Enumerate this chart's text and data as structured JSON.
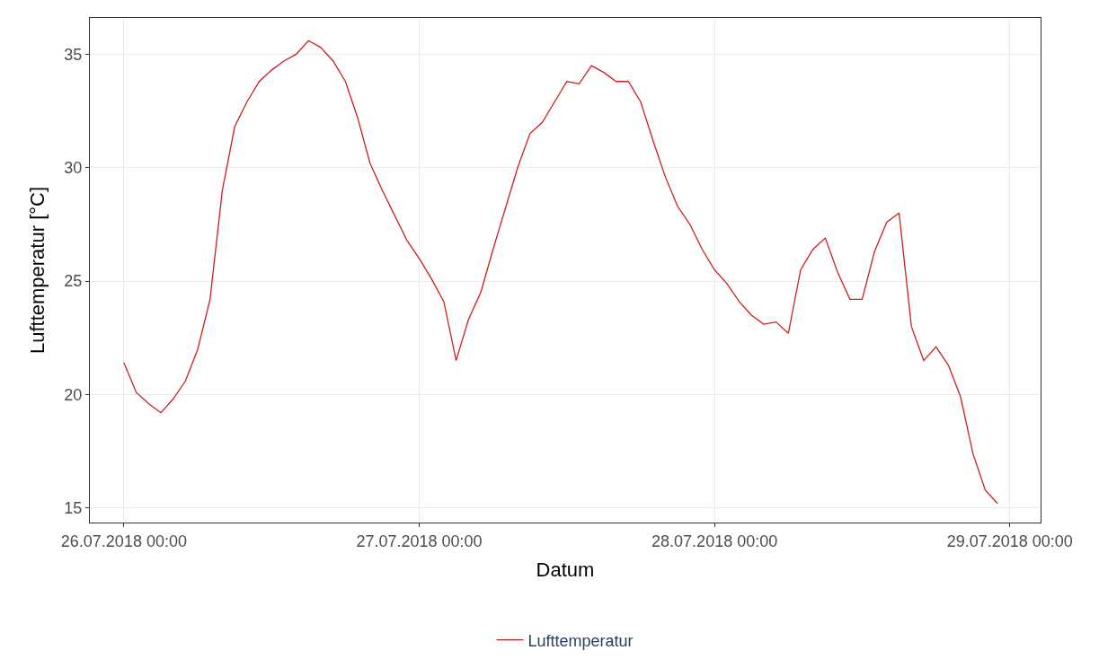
{
  "chart_data": {
    "type": "line",
    "xlabel": "Datum",
    "ylabel": "Lufttemperatur [°C]",
    "x": [
      "2018-07-26T00:00",
      "2018-07-26T01:00",
      "2018-07-26T02:00",
      "2018-07-26T03:00",
      "2018-07-26T04:00",
      "2018-07-26T05:00",
      "2018-07-26T06:00",
      "2018-07-26T07:00",
      "2018-07-26T08:00",
      "2018-07-26T09:00",
      "2018-07-26T10:00",
      "2018-07-26T11:00",
      "2018-07-26T12:00",
      "2018-07-26T13:00",
      "2018-07-26T14:00",
      "2018-07-26T15:00",
      "2018-07-26T16:00",
      "2018-07-26T17:00",
      "2018-07-26T18:00",
      "2018-07-26T19:00",
      "2018-07-26T20:00",
      "2018-07-26T21:00",
      "2018-07-26T22:00",
      "2018-07-26T23:00",
      "2018-07-27T00:00",
      "2018-07-27T01:00",
      "2018-07-27T02:00",
      "2018-07-27T03:00",
      "2018-07-27T04:00",
      "2018-07-27T05:00",
      "2018-07-27T06:00",
      "2018-07-27T07:00",
      "2018-07-27T08:00",
      "2018-07-27T09:00",
      "2018-07-27T10:00",
      "2018-07-27T11:00",
      "2018-07-27T12:00",
      "2018-07-27T13:00",
      "2018-07-27T14:00",
      "2018-07-27T15:00",
      "2018-07-27T16:00",
      "2018-07-27T17:00",
      "2018-07-27T18:00",
      "2018-07-27T19:00",
      "2018-07-27T20:00",
      "2018-07-27T21:00",
      "2018-07-27T22:00",
      "2018-07-27T23:00",
      "2018-07-28T00:00",
      "2018-07-28T01:00",
      "2018-07-28T02:00",
      "2018-07-28T03:00",
      "2018-07-28T04:00",
      "2018-07-28T05:00",
      "2018-07-28T06:00",
      "2018-07-28T07:00",
      "2018-07-28T08:00",
      "2018-07-28T09:00",
      "2018-07-28T10:00",
      "2018-07-28T11:00",
      "2018-07-28T12:00",
      "2018-07-28T13:00",
      "2018-07-28T14:00",
      "2018-07-28T15:00",
      "2018-07-28T16:00",
      "2018-07-28T17:00",
      "2018-07-28T18:00",
      "2018-07-28T19:00",
      "2018-07-28T20:00",
      "2018-07-28T21:00",
      "2018-07-28T22:00",
      "2018-07-28T23:00"
    ],
    "series": [
      {
        "name": "Lufttemperatur",
        "color": "#cc1f1f",
        "values": [
          21.4,
          20.1,
          19.6,
          19.2,
          19.8,
          20.6,
          22.0,
          24.2,
          29.0,
          31.8,
          32.9,
          33.8,
          34.3,
          34.7,
          35.0,
          35.6,
          35.3,
          34.7,
          33.8,
          32.2,
          30.2,
          29.0,
          27.9,
          26.8,
          26.0,
          25.1,
          24.1,
          21.5,
          23.3,
          24.5,
          26.4,
          28.2,
          30.0,
          31.5,
          32.0,
          32.9,
          33.8,
          33.7,
          34.5,
          34.2,
          33.8,
          33.8,
          32.9,
          31.2,
          29.6,
          28.3,
          27.5,
          26.4,
          25.5,
          24.9,
          24.1,
          23.5,
          23.1,
          23.2,
          22.7,
          25.5,
          26.4,
          26.9,
          25.4,
          24.2,
          24.2,
          26.3,
          27.6,
          28.0,
          23.0,
          21.5,
          22.1,
          21.3,
          19.9,
          17.4,
          15.8,
          15.2
        ]
      }
    ],
    "xlim": [
      "2018-07-25T21:14",
      "2018-07-29T02:30"
    ],
    "xticks": [
      {
        "value": "2018-07-26T00:00",
        "label": "26.07.2018 00:00"
      },
      {
        "value": "2018-07-27T00:00",
        "label": "27.07.2018 00:00"
      },
      {
        "value": "2018-07-28T00:00",
        "label": "28.07.2018 00:00"
      },
      {
        "value": "2018-07-29T00:00",
        "label": "29.07.2018 00:00"
      }
    ],
    "ylim": [
      14.36,
      36.6
    ],
    "yticks": [
      15,
      20,
      25,
      30,
      35
    ],
    "grid": true,
    "legend": "bottom",
    "line_style": "solid",
    "marker": "none"
  }
}
